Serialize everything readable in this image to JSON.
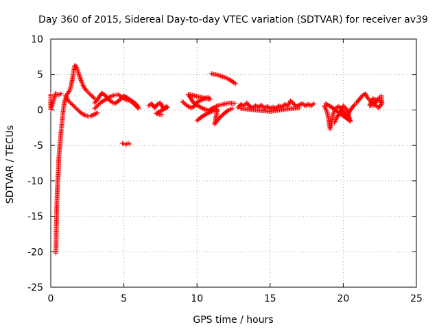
{
  "chart_data": {
    "type": "scatter",
    "title": "Day 360 of 2015, Sidereal Day-to-day VTEC variation (SDTVAR) for receiver av39",
    "xlabel": "GPS time / hours",
    "ylabel": "SDTVAR / TECUs",
    "xlim": [
      0,
      25
    ],
    "ylim": [
      -25,
      10
    ],
    "xticks": [
      0,
      5,
      10,
      15,
      20,
      25
    ],
    "yticks": [
      -25,
      -20,
      -15,
      -10,
      -5,
      0,
      5,
      10
    ],
    "x_tick_labels": [
      "0",
      "5",
      "10",
      "15",
      "20",
      "25"
    ],
    "y_tick_labels": [
      "-25",
      "-20",
      "-15",
      "-10",
      "-5",
      "0",
      "5",
      "10"
    ],
    "grid": true,
    "marker": "+",
    "color": "#ff0000",
    "segments": [
      {
        "name": "initial-drop",
        "points": [
          [
            0.35,
            -20.2
          ],
          [
            0.37,
            -18.5
          ],
          [
            0.38,
            -16.5
          ],
          [
            0.4,
            -14.8
          ],
          [
            0.42,
            -13
          ],
          [
            0.45,
            -11.5
          ],
          [
            0.48,
            -10
          ],
          [
            0.52,
            -8.5
          ],
          [
            0.55,
            -7
          ],
          [
            0.6,
            -5.6
          ],
          [
            0.65,
            -4.4
          ],
          [
            0.7,
            -3.2
          ],
          [
            0.75,
            -2.2
          ],
          [
            0.8,
            -1.2
          ],
          [
            0.85,
            -0.2
          ],
          [
            0.9,
            0.6
          ],
          [
            0.95,
            1.2
          ]
        ]
      },
      {
        "name": "early-dots",
        "points": [
          [
            0,
            2.2
          ],
          [
            0,
            1.7
          ],
          [
            0,
            1.2
          ],
          [
            0,
            0.6
          ],
          [
            0,
            0.1
          ],
          [
            0.35,
            2.4
          ],
          [
            0.45,
            2.2
          ],
          [
            0.55,
            2.1
          ],
          [
            0.7,
            2.3
          ]
        ]
      },
      {
        "name": "rise-to-peak",
        "points": [
          [
            0.95,
            1.2
          ],
          [
            1.05,
            1.8
          ],
          [
            1.15,
            2.3
          ],
          [
            1.25,
            2.6
          ],
          [
            1.35,
            3.1
          ],
          [
            1.45,
            4
          ],
          [
            1.55,
            5.2
          ],
          [
            1.62,
            6.2
          ],
          [
            1.7,
            6.3
          ],
          [
            1.8,
            5.8
          ],
          [
            1.9,
            5.2
          ],
          [
            2.0,
            4.6
          ],
          [
            2.1,
            4.0
          ],
          [
            2.2,
            3.5
          ],
          [
            2.3,
            3.1
          ],
          [
            2.45,
            2.7
          ],
          [
            2.6,
            2.4
          ],
          [
            2.8,
            2.0
          ],
          [
            3.0,
            1.6
          ]
        ]
      },
      {
        "name": "lower-loop",
        "points": [
          [
            1.0,
            2.0
          ],
          [
            1.2,
            1.3
          ],
          [
            1.4,
            0.9
          ],
          [
            1.6,
            0.5
          ],
          [
            1.8,
            0.1
          ],
          [
            2.0,
            -0.3
          ],
          [
            2.2,
            -0.6
          ],
          [
            2.4,
            -0.8
          ],
          [
            2.6,
            -0.9
          ],
          [
            2.8,
            -0.8
          ],
          [
            3.0,
            -0.6
          ],
          [
            3.2,
            -0.4
          ]
        ]
      },
      {
        "name": "hump-3-5",
        "points": [
          [
            3.0,
            0.2
          ],
          [
            3.2,
            0.6
          ],
          [
            3.4,
            1.0
          ],
          [
            3.6,
            1.3
          ],
          [
            3.8,
            1.5
          ],
          [
            4.0,
            1.8
          ],
          [
            4.2,
            2.0
          ],
          [
            4.4,
            2.1
          ],
          [
            4.6,
            2.2
          ],
          [
            4.8,
            1.9
          ],
          [
            5.0,
            1.6
          ],
          [
            5.2,
            1.4
          ],
          [
            5.4,
            1.3
          ],
          [
            5.6,
            1.0
          ],
          [
            5.8,
            0.6
          ],
          [
            6.0,
            0.2
          ],
          [
            3.0,
            1.0
          ],
          [
            3.2,
            1.5
          ],
          [
            3.5,
            2.4
          ],
          [
            3.8,
            1.9
          ],
          [
            4.1,
            1.2
          ],
          [
            4.4,
            0.9
          ],
          [
            4.7,
            1.4
          ],
          [
            5.0,
            2.0
          ],
          [
            5.3,
            1.6
          ],
          [
            5.6,
            1.2
          ],
          [
            5.8,
            0.9
          ],
          [
            6.0,
            0.4
          ]
        ]
      },
      {
        "name": "dip-5",
        "points": [
          [
            4.9,
            -4.7
          ],
          [
            5.0,
            -4.8
          ],
          [
            5.1,
            -4.9
          ],
          [
            5.2,
            -4.8
          ],
          [
            5.3,
            -4.7
          ],
          [
            5.4,
            -4.8
          ]
        ]
      },
      {
        "name": "cluster-7-8",
        "points": [
          [
            6.7,
            0.6
          ],
          [
            6.9,
            0.9
          ],
          [
            7.1,
            0.3
          ],
          [
            7.3,
            0.8
          ],
          [
            7.5,
            1.0
          ],
          [
            7.7,
            0.2
          ],
          [
            7.9,
            0.5
          ],
          [
            8.0,
            0.4
          ],
          [
            7.2,
            -0.5
          ],
          [
            7.6,
            -0.7
          ]
        ]
      },
      {
        "name": "cluster-9-12",
        "points": [
          [
            9.0,
            1.2
          ],
          [
            9.2,
            0.8
          ],
          [
            9.4,
            0.5
          ],
          [
            9.6,
            0.3
          ],
          [
            9.8,
            0.5
          ],
          [
            10.0,
            1.1
          ],
          [
            10.2,
            1.3
          ],
          [
            10.4,
            1.5
          ],
          [
            10.6,
            1.7
          ],
          [
            10.8,
            1.8
          ],
          [
            10.9,
            1.5
          ],
          [
            9.4,
            2.2
          ],
          [
            9.8,
            0.9
          ],
          [
            10.4,
            0.2
          ],
          [
            10.8,
            -0.1
          ],
          [
            11.1,
            0.3
          ],
          [
            11.4,
            0.6
          ],
          [
            11.8,
            0.8
          ],
          [
            12.2,
            1.0
          ],
          [
            12.6,
            0.9
          ]
        ]
      },
      {
        "name": "upper-segment",
        "points": [
          [
            11.0,
            5.1
          ],
          [
            11.3,
            5.0
          ],
          [
            11.6,
            4.8
          ],
          [
            11.9,
            4.6
          ],
          [
            12.2,
            4.3
          ],
          [
            12.5,
            3.9
          ],
          [
            12.65,
            3.7
          ]
        ]
      },
      {
        "name": "descending-lines",
        "points": [
          [
            10.0,
            -1.5
          ],
          [
            10.3,
            -1.0
          ],
          [
            10.6,
            -0.6
          ],
          [
            11.0,
            -0.2
          ],
          [
            11.4,
            0.1
          ],
          [
            11.2,
            -2.0
          ],
          [
            11.5,
            -1.2
          ],
          [
            11.8,
            -0.6
          ],
          [
            12.1,
            -0.1
          ],
          [
            12.4,
            0.2
          ]
        ]
      },
      {
        "name": "band-13-18",
        "points": [
          [
            12.8,
            0.3
          ],
          [
            13.0,
            0.8
          ],
          [
            13.2,
            0.6
          ],
          [
            13.4,
            1.0
          ],
          [
            13.6,
            0.5
          ],
          [
            13.8,
            0.3
          ],
          [
            14.0,
            0.6
          ],
          [
            14.2,
            0.4
          ],
          [
            14.4,
            0.7
          ],
          [
            14.6,
            0.3
          ],
          [
            14.8,
            0.5
          ],
          [
            15.0,
            0.2
          ],
          [
            15.2,
            0.4
          ],
          [
            15.4,
            0.2
          ],
          [
            15.6,
            0.6
          ],
          [
            15.8,
            0.4
          ],
          [
            16.0,
            0.8
          ],
          [
            16.2,
            0.6
          ],
          [
            16.4,
            1.3
          ],
          [
            16.6,
            0.9
          ],
          [
            16.8,
            0.5
          ],
          [
            17.0,
            0.7
          ],
          [
            17.2,
            0.9
          ],
          [
            17.4,
            0.6
          ],
          [
            17.6,
            0.8
          ],
          [
            17.8,
            0.6
          ],
          [
            18.0,
            0.9
          ],
          [
            13.0,
            0.2
          ],
          [
            14.0,
            0.0
          ],
          [
            15.0,
            -0.2
          ],
          [
            16.0,
            0.1
          ],
          [
            17.0,
            0.3
          ]
        ]
      },
      {
        "name": "cluster-19-21",
        "points": [
          [
            18.7,
            0.6
          ],
          [
            18.9,
            -0.3
          ],
          [
            19.0,
            -1.3
          ],
          [
            19.1,
            -2.7
          ],
          [
            19.2,
            -1.8
          ],
          [
            19.3,
            -0.6
          ],
          [
            19.5,
            0.3
          ],
          [
            19.7,
            0.5
          ],
          [
            19.9,
            0.0
          ],
          [
            20.1,
            -0.5
          ],
          [
            20.3,
            -1.2
          ],
          [
            20.4,
            -0.3
          ],
          [
            20.6,
            0.3
          ],
          [
            20.8,
            0.8
          ],
          [
            19.4,
            -1.8
          ],
          [
            19.6,
            -0.9
          ],
          [
            19.8,
            -0.4
          ],
          [
            20.0,
            0.6
          ],
          [
            20.2,
            0.2
          ],
          [
            20.5,
            -1.6
          ],
          [
            19.2,
            0.4
          ],
          [
            18.8,
            0.9
          ]
        ]
      },
      {
        "name": "cluster-21-23",
        "points": [
          [
            20.9,
            1.0
          ],
          [
            21.1,
            1.5
          ],
          [
            21.3,
            2.0
          ],
          [
            21.5,
            2.3
          ],
          [
            21.7,
            1.6
          ],
          [
            21.9,
            1.2
          ],
          [
            22.1,
            0.8
          ],
          [
            22.3,
            1.4
          ],
          [
            22.5,
            1.8
          ],
          [
            22.6,
            2.0
          ],
          [
            22.65,
            0.9
          ],
          [
            22.4,
            0.3
          ],
          [
            22.2,
            0.7
          ],
          [
            21.8,
            0.6
          ],
          [
            22.0,
            1.6
          ],
          [
            22.6,
            1.2
          ]
        ]
      }
    ]
  }
}
